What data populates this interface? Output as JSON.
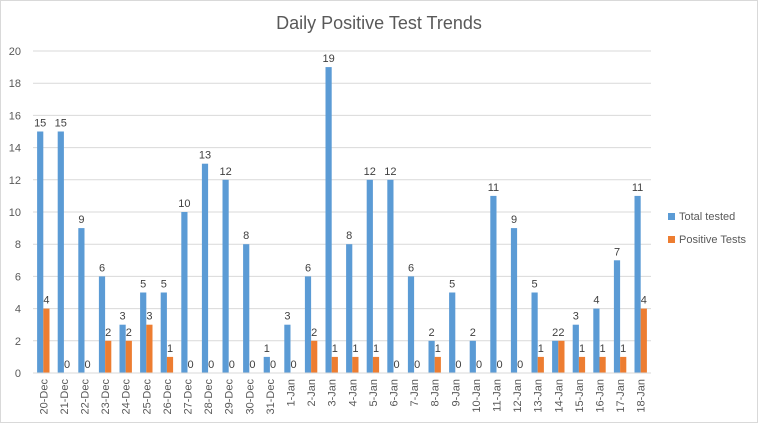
{
  "chart_data": {
    "type": "bar",
    "title": "Daily Positive Test Trends",
    "xlabel": "",
    "ylabel": "",
    "ylim": [
      0,
      20
    ],
    "yticks": [
      "0",
      "2",
      "4",
      "6",
      "8",
      "10",
      "12",
      "14",
      "16",
      "18",
      "20"
    ],
    "grid": true,
    "legend_position": "right",
    "categories": [
      "20-Dec",
      "21-Dec",
      "22-Dec",
      "23-Dec",
      "24-Dec",
      "25-Dec",
      "26-Dec",
      "27-Dec",
      "28-Dec",
      "29-Dec",
      "30-Dec",
      "31-Dec",
      "1-Jan",
      "2-Jan",
      "3-Jan",
      "4-Jan",
      "5-Jan",
      "6-Jan",
      "7-Jan",
      "8-Jan",
      "9-Jan",
      "10-Jan",
      "11-Jan",
      "12-Jan",
      "13-Jan",
      "14-Jan",
      "15-Jan",
      "16-Jan",
      "17-Jan",
      "18-Jan"
    ],
    "series": [
      {
        "name": "Total tested",
        "color": "#5B9BD5",
        "values": [
          15,
          15,
          9,
          6,
          3,
          5,
          5,
          10,
          13,
          12,
          8,
          1,
          3,
          6,
          19,
          8,
          12,
          12,
          6,
          2,
          5,
          2,
          11,
          9,
          5,
          2,
          3,
          4,
          7,
          11
        ]
      },
      {
        "name": "Positive Tests",
        "color": "#ED7D31",
        "values": [
          4,
          0,
          0,
          2,
          2,
          3,
          1,
          0,
          0,
          0,
          0,
          0,
          0,
          2,
          1,
          1,
          1,
          0,
          0,
          1,
          0,
          0,
          0,
          0,
          1,
          2,
          1,
          1,
          1,
          4
        ]
      }
    ]
  }
}
